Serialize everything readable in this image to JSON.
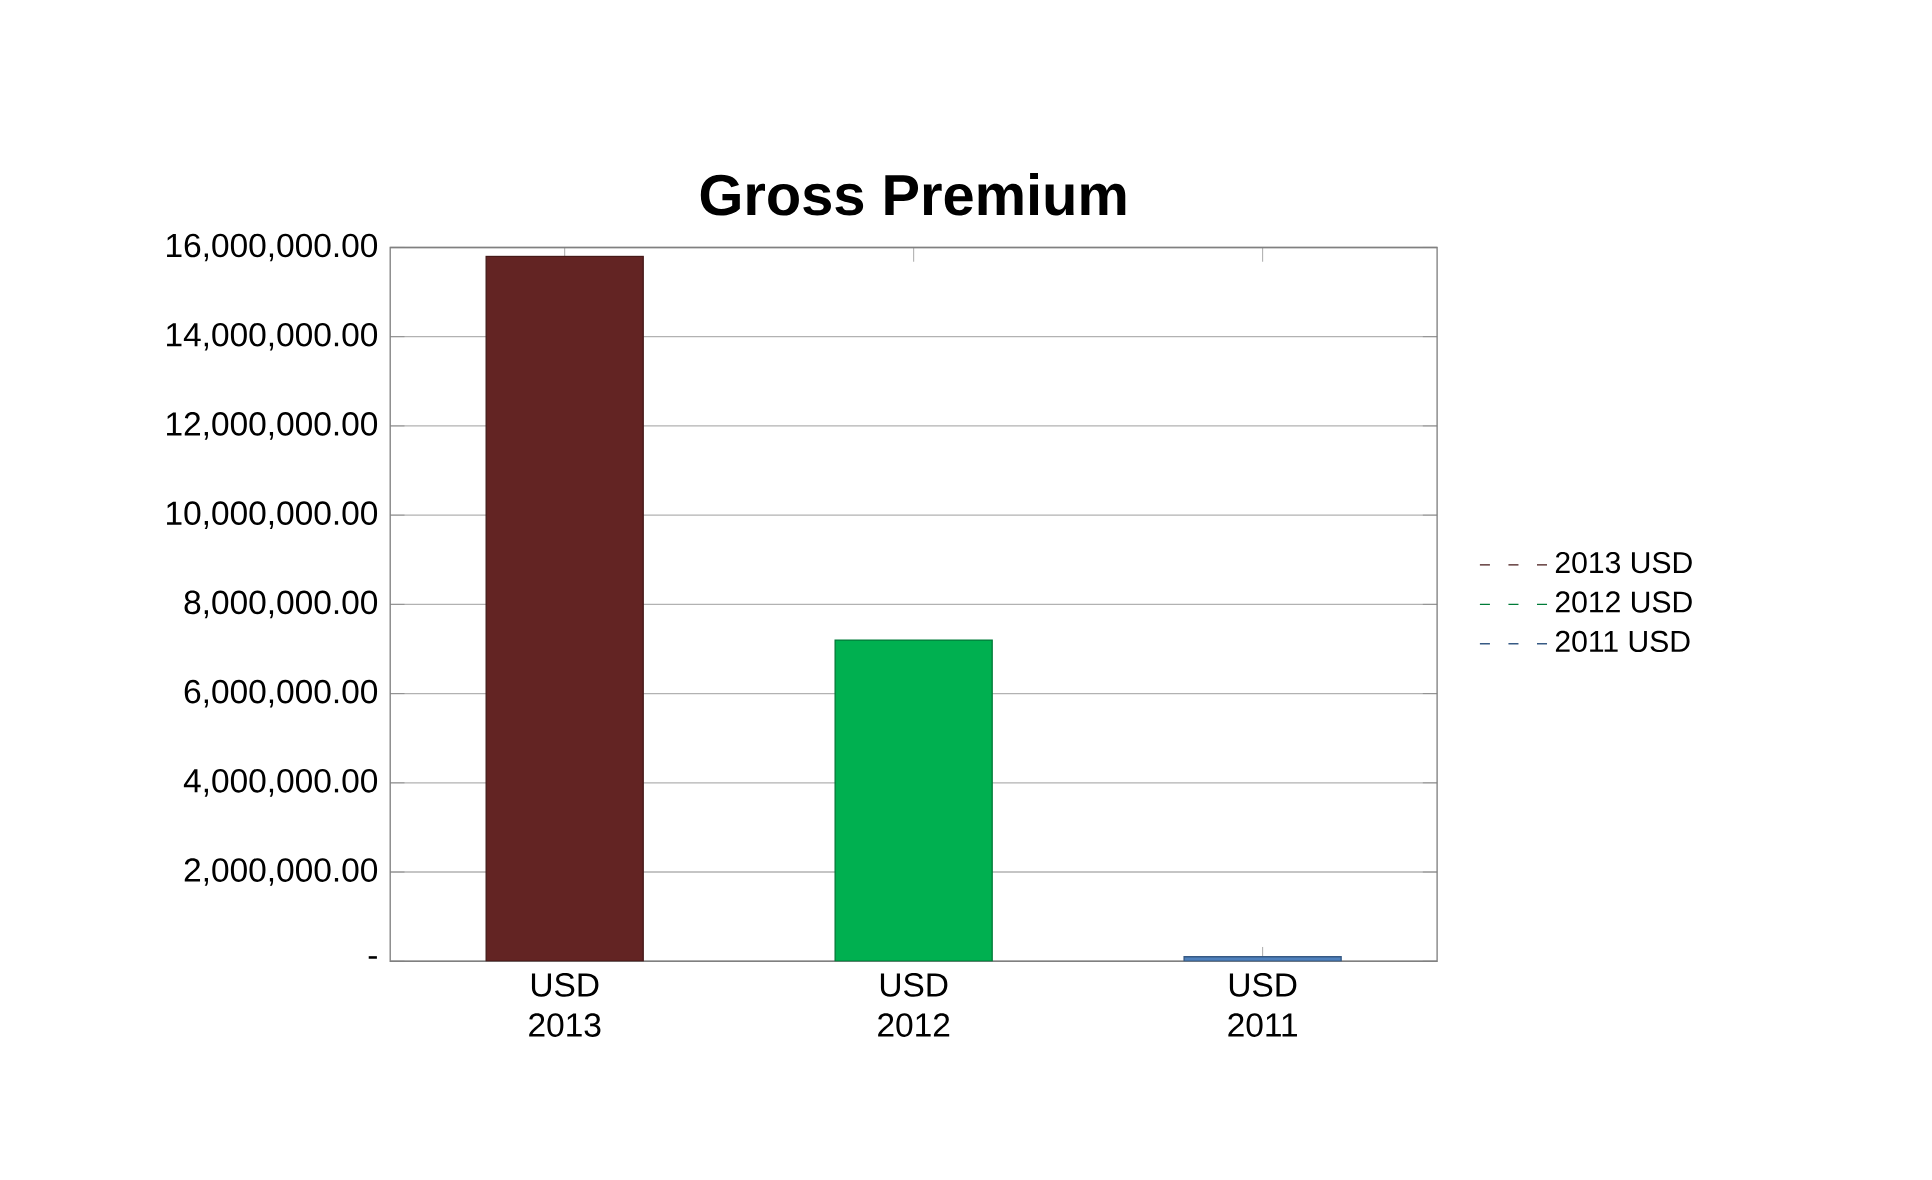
{
  "chart_data": {
    "type": "bar",
    "title": "Gross Premium",
    "categories": [
      "USD 2013",
      "USD 2012",
      "USD 2011"
    ],
    "series": [
      {
        "name": "2013 USD",
        "color": "#632423",
        "values": [
          15800000,
          null,
          null
        ]
      },
      {
        "name": "2012 USD",
        "color": "#00b050",
        "values": [
          null,
          7200000,
          null
        ]
      },
      {
        "name": "2011 USD",
        "color": "#4f81bd",
        "values": [
          null,
          null,
          100000
        ]
      }
    ],
    "ylim": [
      0,
      16000000
    ],
    "yticks": [
      {
        "value": 0,
        "label": "-"
      },
      {
        "value": 2000000,
        "label": "2,000,000.00"
      },
      {
        "value": 4000000,
        "label": "4,000,000.00"
      },
      {
        "value": 6000000,
        "label": "6,000,000.00"
      },
      {
        "value": 8000000,
        "label": "8,000,000.00"
      },
      {
        "value": 10000000,
        "label": "10,000,000.00"
      },
      {
        "value": 12000000,
        "label": "12,000,000.00"
      },
      {
        "value": 14000000,
        "label": "14,000,000.00"
      },
      {
        "value": 16000000,
        "label": "16,000,000.00"
      }
    ],
    "grid": "y",
    "legend": "right"
  }
}
